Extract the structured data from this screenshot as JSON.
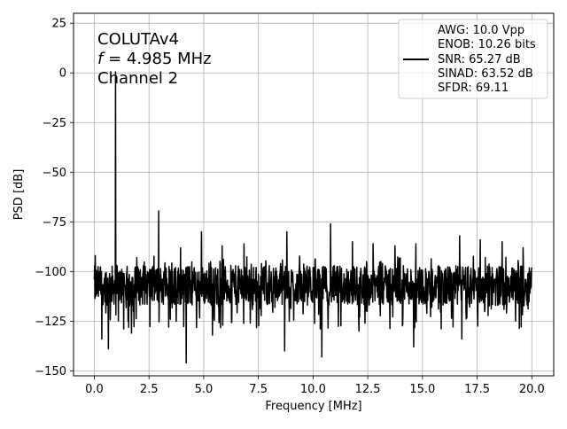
{
  "chart_data": {
    "type": "line",
    "title": "",
    "xlabel": "Frequency [MHz]",
    "ylabel": "PSD [dB]",
    "xlim": [
      -0.95,
      21.0
    ],
    "ylim": [
      -152.5,
      30.0
    ],
    "xticks": [
      0.0,
      2.5,
      5.0,
      7.5,
      10.0,
      12.5,
      15.0,
      17.5,
      20.0
    ],
    "xtick_labels": [
      "0.0",
      "2.5",
      "5.0",
      "7.5",
      "10.0",
      "12.5",
      "15.0",
      "17.5",
      "20.0"
    ],
    "yticks": [
      25,
      0,
      -25,
      -50,
      -75,
      -100,
      -125,
      -150
    ],
    "ytick_labels": [
      "25",
      "0",
      "−25",
      "−50",
      "−75",
      "−100",
      "−125",
      "−150"
    ],
    "grid": true,
    "legend_placement": "upper right",
    "annotations": [
      "COLUTAv4",
      "f = 4.985 MHz",
      "Channel 2"
    ],
    "legend_entries": [
      "AWG: 10.0 Vpp",
      "ENOB: 10.26 bits",
      "SNR: 65.27 dB",
      "SINAD: 63.52 dB",
      "SFDR: 69.11"
    ],
    "series": [
      {
        "color": "#000000",
        "x_start": 0.0,
        "x_end": 20.0,
        "noise_floor": -107,
        "noise_spread": 10,
        "spur_threshold": -100,
        "peaks": [
          {
            "x": 0.97,
            "y": 0.5
          },
          {
            "x": 2.95,
            "y": -69.5
          },
          {
            "x": 0.05,
            "y": -92
          },
          {
            "x": 1.95,
            "y": -93
          },
          {
            "x": 3.95,
            "y": -88
          },
          {
            "x": 4.9,
            "y": -80
          },
          {
            "x": 5.85,
            "y": -87
          },
          {
            "x": 6.85,
            "y": -86
          },
          {
            "x": 8.8,
            "y": -80
          },
          {
            "x": 10.8,
            "y": -76
          },
          {
            "x": 11.8,
            "y": -85
          },
          {
            "x": 12.75,
            "y": -86
          },
          {
            "x": 13.75,
            "y": -87
          },
          {
            "x": 14.7,
            "y": -86
          },
          {
            "x": 16.7,
            "y": -82
          },
          {
            "x": 17.65,
            "y": -84
          },
          {
            "x": 18.65,
            "y": -85
          },
          {
            "x": 19.6,
            "y": -88
          }
        ],
        "dips": [
          {
            "x": 0.65,
            "y": -139
          },
          {
            "x": 0.35,
            "y": -134
          },
          {
            "x": 1.7,
            "y": -131
          },
          {
            "x": 4.2,
            "y": -146
          },
          {
            "x": 8.7,
            "y": -140
          },
          {
            "x": 10.4,
            "y": -143
          },
          {
            "x": 14.6,
            "y": -138
          },
          {
            "x": 16.8,
            "y": -134
          },
          {
            "x": 5.4,
            "y": -132
          },
          {
            "x": 12.1,
            "y": -130
          }
        ]
      }
    ]
  }
}
